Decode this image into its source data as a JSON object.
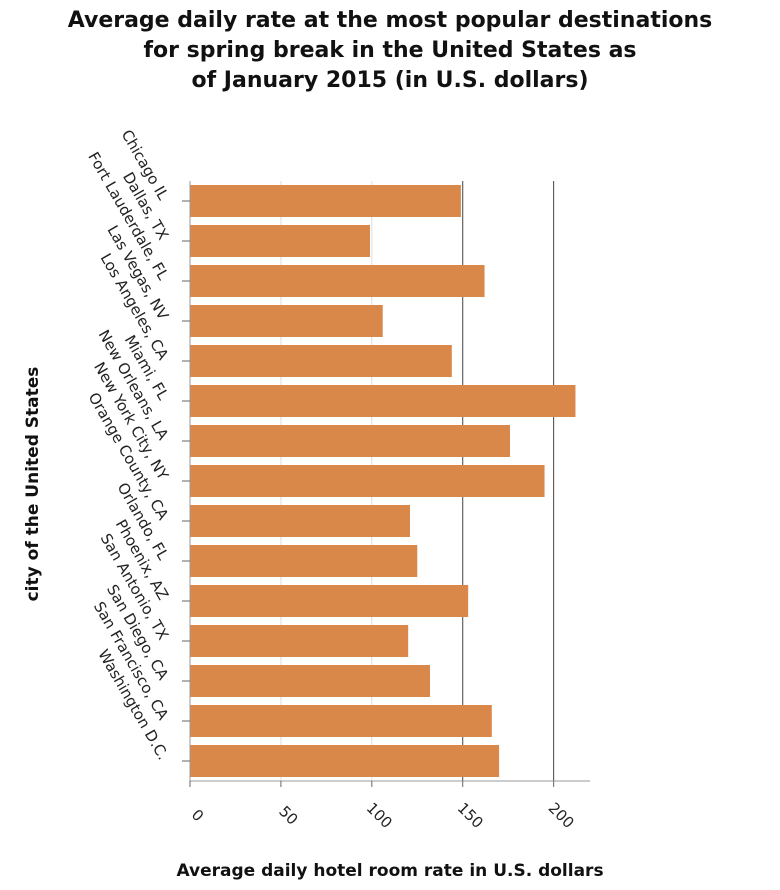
{
  "chart_data": {
    "type": "bar",
    "orientation": "horizontal",
    "title_lines": [
      "Average daily rate at the most popular destinations",
      "for spring break in the United States as",
      "of January 2015 (in U.S. dollars)"
    ],
    "xlabel": "Average daily hotel room rate in U.S. dollars",
    "ylabel": "city of the United States",
    "categories": [
      "Chicago IL",
      "Dallas, TX",
      "Fort Lauderdale, FL",
      "Las Vegas, NV",
      "Los Angeles, CA",
      "Miami, FL",
      "New Orleans, LA",
      "New York City, NY",
      "Orange County, CA",
      "Orlando, FL",
      "Phoenix, AZ",
      "San Antonio, TX",
      "San Diego, CA",
      "San Francisco, CA",
      "Washington D.C."
    ],
    "values": [
      149,
      99,
      162,
      106,
      144,
      212,
      176,
      195,
      121,
      125,
      153,
      120,
      132,
      166,
      170
    ],
    "xlim": [
      0,
      220
    ],
    "xticks": [
      "0",
      "50",
      "100",
      "150",
      "200"
    ],
    "grid": "vertical at 150 and 200",
    "bar_color": "#d9884a",
    "legend": "none"
  }
}
